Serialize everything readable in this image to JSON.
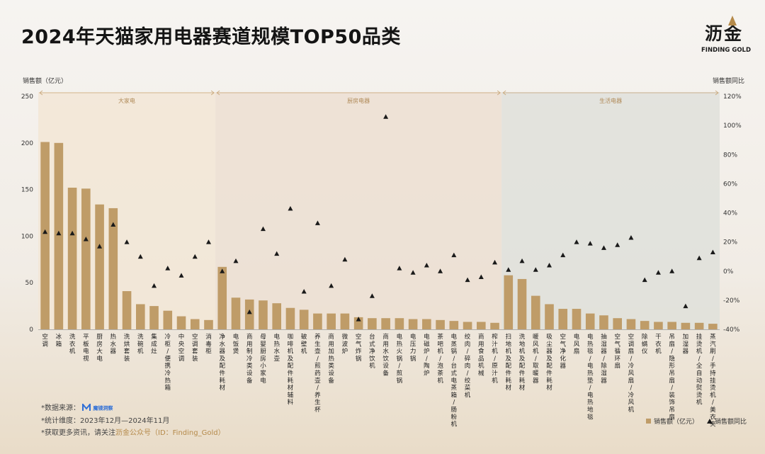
{
  "title": "2024年天猫家用电器赛道规模TOP50品类",
  "logo": {
    "cn": "沥金",
    "en": "FINDING GOLD"
  },
  "axes": {
    "left_title": "销售额（亿元）",
    "right_title": "销售额同比"
  },
  "footer": {
    "source_label": "*数据来源：",
    "source_brand": "魔镜洞察",
    "period": "*统计维度：2023年12月—2024年11月",
    "more_prefix": "*获取更多资讯，请关注",
    "more_highlight": "沥金公众号（ID：Finding_Gold）"
  },
  "legend": {
    "bar": "销售额（亿元）",
    "marker": "销售额同比"
  },
  "colors": {
    "bar": "#bf9c68",
    "marker": "#1a1a1a",
    "accent": "#b58a4a"
  },
  "chart_data": {
    "type": "bar",
    "y_left": {
      "label": "销售额（亿元）",
      "range": [
        0,
        250
      ],
      "ticks": [
        "0",
        "50",
        "100",
        "150",
        "200",
        "250"
      ]
    },
    "y_right": {
      "label": "销售额同比",
      "range": [
        -40,
        120
      ],
      "ticks": [
        "-40%",
        "-20%",
        "0%",
        "20%",
        "40%",
        "60%",
        "80%",
        "100%",
        "120%"
      ]
    },
    "groups": [
      {
        "name": "大家电",
        "from": 0,
        "to": 12,
        "color": "#f2e6d6"
      },
      {
        "name": "厨房电器",
        "from": 13,
        "to": 33,
        "color": "#ecdfd2"
      },
      {
        "name": "生活电器",
        "from": 34,
        "to": 49,
        "color": "#dfe0da"
      }
    ],
    "categories": [
      "空调",
      "冰箱",
      "洗衣机",
      "平板电视",
      "厨房大电",
      "热水器",
      "洗烘套装",
      "洗碗机",
      "集成灶",
      "冷柜/便携冷热箱",
      "中央空调",
      "空调套装",
      "消毒柜",
      "净水器及配件耗材",
      "电饭煲",
      "商用制冷类设备",
      "母婴厨房小家电",
      "电热水壶",
      "咖啡机及配件耗材辅料",
      "破壁机",
      "养生壶/煎药壶/养生杯",
      "商用加热类设备",
      "微波炉",
      "空气炸锅",
      "台式净饮机",
      "商用水饮设备",
      "电热火锅/煎锅",
      "电压力锅",
      "电磁炉/陶炉",
      "茶吧机/泡茶机",
      "电蒸锅/台式电蒸箱/肠粉机",
      "绞肉/碎肉/绞菜机",
      "商用食品机械",
      "榨汁机/原汁机",
      "扫地机及配件耗材",
      "洗地机及配件耗材",
      "暖风机/取暖器",
      "吸尘器及配件耗材",
      "空气净化器",
      "电风扇",
      "电热毯/电热垫/电热地毯",
      "抽湿器/除湿器",
      "空气循环扇",
      "空调扇/冷风扇/冷风机",
      "除螨仪",
      "干衣机",
      "吊扇/隐形吊扇/装饰吊扇",
      "加湿器",
      "挂烫机/全自动熨烫机",
      "蒸汽刷/手持挂烫机/美衣夹"
    ],
    "series": [
      {
        "name": "销售额（亿元）",
        "axis": "left",
        "values": [
          201,
          200,
          152,
          151,
          134,
          130,
          41,
          27,
          25,
          20,
          14,
          11,
          10,
          67,
          34,
          32,
          31,
          28,
          23,
          21,
          17,
          17,
          17,
          13,
          12,
          12,
          12,
          11,
          11,
          10,
          9,
          8,
          8,
          7,
          58,
          54,
          36,
          27,
          22,
          22,
          17,
          15,
          12,
          11,
          9,
          8,
          8,
          7,
          7,
          6
        ]
      },
      {
        "name": "销售额同比",
        "axis": "right",
        "unit": "%",
        "values": [
          27,
          26,
          26,
          22,
          17,
          32,
          20,
          10,
          -10,
          2,
          -3,
          10,
          20,
          0,
          7,
          -28,
          29,
          12,
          43,
          -14,
          33,
          -10,
          8,
          -33,
          -17,
          106,
          2,
          -1,
          4,
          0,
          11,
          -6,
          -4,
          6,
          1,
          7,
          1,
          4,
          11,
          20,
          19,
          16,
          18,
          23,
          -6,
          -1,
          0,
          -24,
          9,
          13
        ]
      }
    ]
  }
}
